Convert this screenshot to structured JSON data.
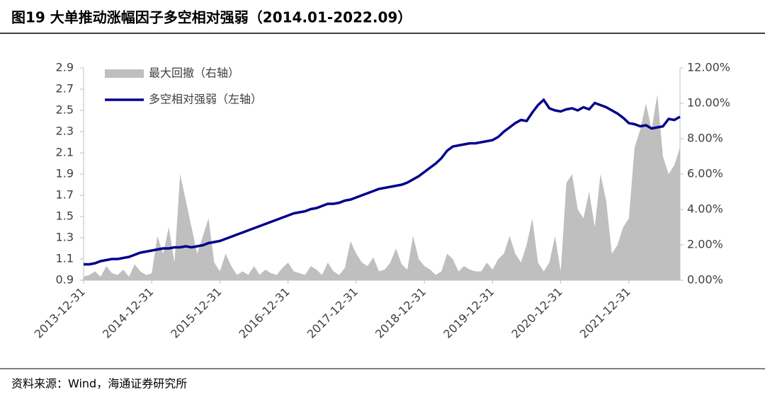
{
  "title": "图19 大单推动涨幅因子多空相对强弱（2014.01-2022.09）",
  "source": "资料来源：Wind，海通证券研究所",
  "chart_data": {
    "type": "line",
    "categories": [
      "2013-12-31",
      null,
      null,
      null,
      null,
      null,
      null,
      null,
      null,
      null,
      null,
      null,
      "2014-12-31",
      null,
      null,
      null,
      null,
      null,
      null,
      null,
      null,
      null,
      null,
      null,
      "2015-12-31",
      null,
      null,
      null,
      null,
      null,
      null,
      null,
      null,
      null,
      null,
      null,
      "2016-12-31",
      null,
      null,
      null,
      null,
      null,
      null,
      null,
      null,
      null,
      null,
      null,
      "2017-12-31",
      null,
      null,
      null,
      null,
      null,
      null,
      null,
      null,
      null,
      null,
      null,
      "2018-12-31",
      null,
      null,
      null,
      null,
      null,
      null,
      null,
      null,
      null,
      null,
      null,
      "2019-12-31",
      null,
      null,
      null,
      null,
      null,
      null,
      null,
      null,
      null,
      null,
      null,
      "2020-12-31",
      null,
      null,
      null,
      null,
      null,
      null,
      null,
      null,
      null,
      null,
      null,
      "2021-12-31",
      null,
      null,
      null,
      null,
      null,
      null,
      null,
      null,
      null
    ],
    "series": [
      {
        "name": "最大回撤（右轴）",
        "type": "area",
        "axis": "y2",
        "color": "#bfbfbf",
        "values": [
          0.2,
          0.3,
          0.5,
          0.2,
          0.8,
          0.4,
          0.3,
          0.6,
          0.2,
          0.9,
          0.5,
          0.3,
          0.4,
          2.5,
          1.5,
          3.0,
          1.0,
          6.0,
          4.5,
          3.0,
          1.5,
          2.5,
          3.5,
          1.0,
          0.5,
          1.5,
          0.8,
          0.3,
          0.5,
          0.3,
          0.8,
          0.3,
          0.6,
          0.4,
          0.3,
          0.7,
          1.0,
          0.5,
          0.4,
          0.3,
          0.8,
          0.6,
          0.3,
          1.0,
          0.5,
          0.3,
          0.7,
          2.2,
          1.5,
          1.0,
          0.8,
          1.3,
          0.5,
          0.6,
          1.0,
          1.8,
          0.9,
          0.6,
          2.5,
          1.2,
          0.8,
          0.6,
          0.3,
          0.5,
          1.5,
          1.2,
          0.5,
          0.8,
          0.6,
          0.5,
          0.5,
          1.0,
          0.6,
          1.2,
          1.5,
          2.5,
          1.5,
          1.0,
          2.0,
          3.5,
          1.0,
          0.5,
          1.0,
          2.5,
          0.5,
          5.5,
          6.0,
          4.0,
          3.5,
          5.0,
          3.0,
          6.0,
          4.5,
          1.5,
          2.0,
          3.0,
          3.5,
          7.5,
          8.5,
          10.0,
          8.5,
          10.5,
          7.0,
          6.0,
          6.5,
          7.5
        ]
      },
      {
        "name": "多空相对强弱（左轴）",
        "type": "line",
        "axis": "y",
        "color": "#00008b",
        "values": [
          1.05,
          1.05,
          1.06,
          1.08,
          1.09,
          1.1,
          1.1,
          1.11,
          1.12,
          1.14,
          1.16,
          1.17,
          1.18,
          1.19,
          1.2,
          1.2,
          1.21,
          1.21,
          1.22,
          1.21,
          1.22,
          1.23,
          1.25,
          1.26,
          1.27,
          1.29,
          1.31,
          1.33,
          1.35,
          1.37,
          1.39,
          1.41,
          1.43,
          1.45,
          1.47,
          1.49,
          1.51,
          1.53,
          1.54,
          1.55,
          1.57,
          1.58,
          1.6,
          1.62,
          1.62,
          1.63,
          1.65,
          1.66,
          1.68,
          1.7,
          1.72,
          1.74,
          1.76,
          1.77,
          1.78,
          1.79,
          1.8,
          1.82,
          1.85,
          1.88,
          1.92,
          1.96,
          2.0,
          2.05,
          2.12,
          2.16,
          2.17,
          2.18,
          2.19,
          2.19,
          2.2,
          2.21,
          2.22,
          2.25,
          2.3,
          2.34,
          2.38,
          2.41,
          2.4,
          2.48,
          2.55,
          2.6,
          2.52,
          2.5,
          2.49,
          2.51,
          2.52,
          2.5,
          2.53,
          2.51,
          2.57,
          2.55,
          2.53,
          2.5,
          2.47,
          2.43,
          2.38,
          2.37,
          2.35,
          2.36,
          2.33,
          2.34,
          2.35,
          2.42,
          2.41,
          2.44
        ]
      }
    ],
    "ylim": [
      0.9,
      2.9
    ],
    "yticks": [
      0.9,
      1.1,
      1.3,
      1.5,
      1.7,
      1.9,
      2.1,
      2.3,
      2.5,
      2.7,
      2.9
    ],
    "y2lim": [
      0,
      12
    ],
    "y2ticks": [
      {
        "value": 0,
        "label": "0.00%"
      },
      {
        "value": 2,
        "label": "2.00%"
      },
      {
        "value": 4,
        "label": "4.00%"
      },
      {
        "value": 6,
        "label": "6.00%"
      },
      {
        "value": 8,
        "label": "8.00%"
      },
      {
        "value": 10,
        "label": "10.00%"
      },
      {
        "value": 12,
        "label": "12.00%"
      }
    ],
    "legend": "upper left"
  }
}
